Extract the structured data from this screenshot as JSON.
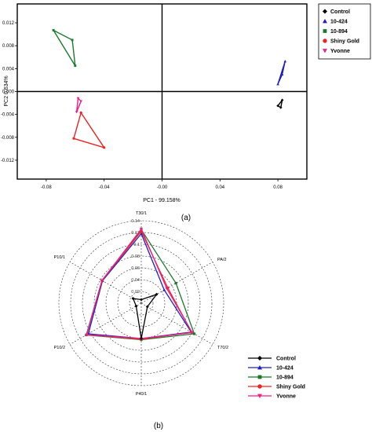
{
  "chart_data": [
    {
      "type": "scatter",
      "panel_label": "(a)",
      "xlabel": "PC1 - 99.158%",
      "ylabel": "PC2 0.634%",
      "xlim": [
        -0.1,
        0.1
      ],
      "ylim": [
        0.0153,
        -0.0153
      ],
      "y_axis_inverted": true,
      "x_ticks": [
        "-0.08",
        "-0.04",
        "-0.00",
        "0.04",
        "0.08"
      ],
      "x_tick_values": [
        -0.08,
        -0.04,
        0.0,
        0.04,
        0.08
      ],
      "y_ticks": [
        "-0.012",
        "-0.008",
        "-0.004",
        "0.000",
        "0.004",
        "0.008",
        "0.012"
      ],
      "y_tick_values": [
        -0.012,
        -0.008,
        -0.004,
        0.0,
        0.004,
        0.008,
        0.012
      ],
      "grid": false,
      "legend_position": "top-right",
      "series": [
        {
          "name": "Control",
          "color": "#000000",
          "marker": "diamond",
          "points": [
            [
              0.08,
              -0.0025
            ],
            [
              0.083,
              -0.0015
            ],
            [
              0.082,
              -0.0028
            ]
          ]
        },
        {
          "name": "10-424",
          "color": "#1f1fbf",
          "marker": "triangle-up",
          "points": [
            [
              0.08,
              0.0013
            ],
            [
              0.085,
              0.0053
            ],
            [
              0.083,
              0.003
            ]
          ]
        },
        {
          "name": "10-894",
          "color": "#1b7a2a",
          "marker": "square",
          "points": [
            [
              -0.075,
              0.0107
            ],
            [
              -0.06,
              0.0045
            ],
            [
              -0.062,
              0.009
            ]
          ]
        },
        {
          "name": "Shiny Gold",
          "color": "#ee2424",
          "marker": "circle",
          "points": [
            [
              -0.061,
              -0.0082
            ],
            [
              -0.04,
              -0.0098
            ],
            [
              -0.056,
              -0.0037
            ]
          ]
        },
        {
          "name": "Yvonne",
          "color": "#ee1f8a",
          "marker": "triangle-down",
          "points": [
            [
              -0.059,
              -0.0036
            ],
            [
              -0.056,
              -0.0017
            ],
            [
              -0.058,
              -0.0012
            ]
          ]
        }
      ]
    },
    {
      "type": "radar",
      "panel_label": "(b)",
      "axes": [
        "T30/1",
        "PA/2",
        "T70/2",
        "P40/1",
        "P10/2",
        "P10/1"
      ],
      "radial_ticks": [
        "0.02",
        "0.04",
        "0.06",
        "0.08",
        "0.1",
        "0.12",
        "0.14"
      ],
      "radial_tick_values": [
        0.02,
        0.04,
        0.06,
        0.08,
        0.1,
        0.12,
        0.14
      ],
      "rmax": 0.14,
      "legend_position": "bottom-right",
      "series": [
        {
          "name": "Control",
          "color": "#000000",
          "marker": "diamond",
          "values": [
            0.006,
            0.03,
            0.012,
            0.06,
            0.01,
            0.016
          ]
        },
        {
          "name": "10-424",
          "color": "#1f1fbf",
          "marker": "triangle-up",
          "values": [
            0.118,
            0.045,
            0.098,
            0.06,
            0.104,
            0.076
          ]
        },
        {
          "name": "10-894",
          "color": "#1b7a2a",
          "marker": "square",
          "values": [
            0.125,
            0.068,
            0.104,
            0.062,
            0.108,
            0.077
          ]
        },
        {
          "name": "Shiny Gold",
          "color": "#ee2424",
          "marker": "circle",
          "values": [
            0.122,
            0.052,
            0.099,
            0.061,
            0.107,
            0.077
          ]
        },
        {
          "name": "Yvonne",
          "color": "#ee1f8a",
          "marker": "triangle-down",
          "values": [
            0.126,
            0.05,
            0.1,
            0.06,
            0.107,
            0.077
          ]
        }
      ]
    }
  ]
}
